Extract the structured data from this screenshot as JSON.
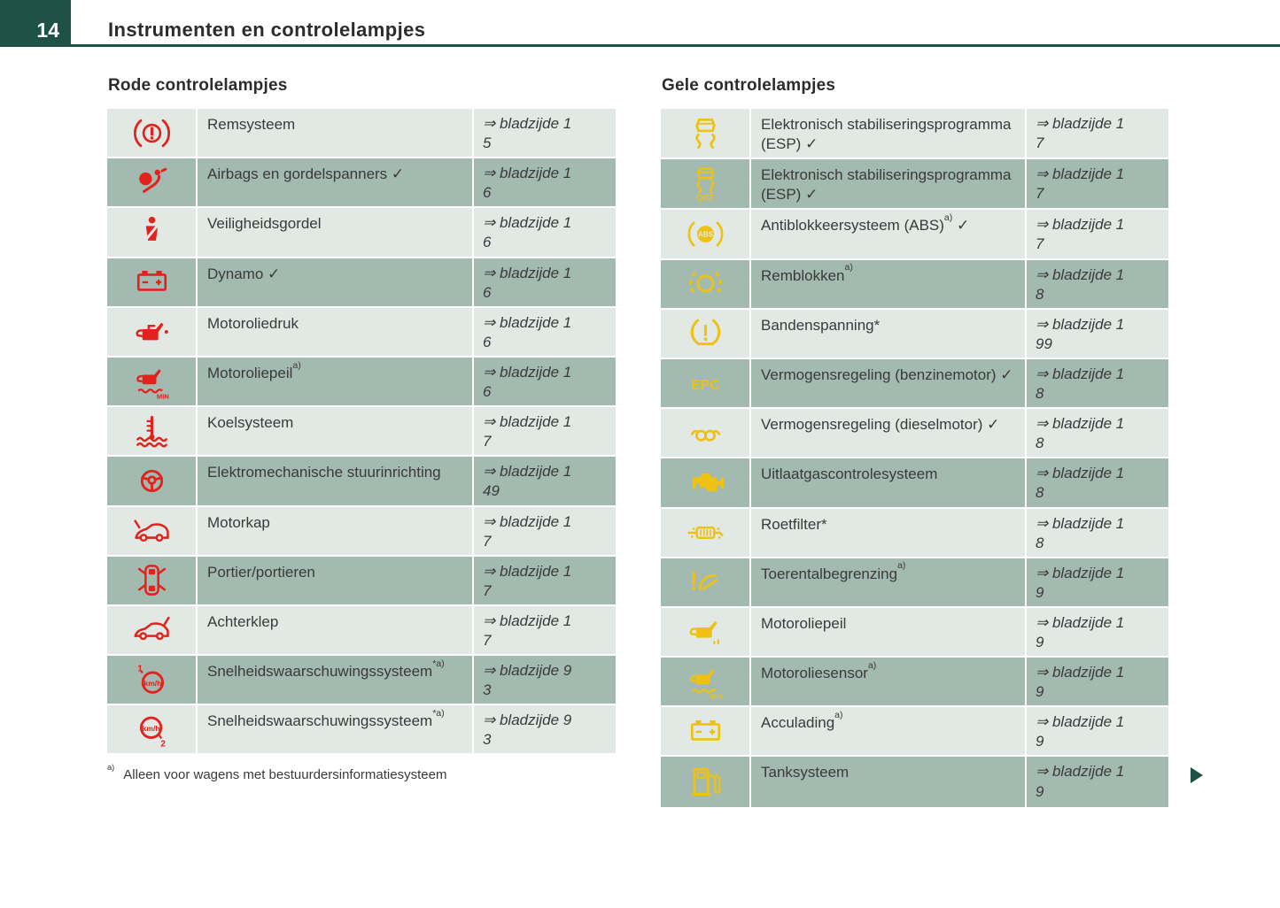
{
  "colors": {
    "teal": "#1e5247",
    "red": "#e2231d",
    "yellow": "#eec113",
    "row_light": "#e2e9e4",
    "row_dark": "#a3bab0",
    "text": "#3a3a3a"
  },
  "glyphs": {
    "check": "✓",
    "ref_arrow": "⇒"
  },
  "header": {
    "page_number": "14",
    "title": "Instrumenten en controlelampjes"
  },
  "red_section": {
    "heading": "Rode controlelampjes",
    "rows": [
      {
        "icon": "brake-warning-icon",
        "label": "Remsysteem",
        "sup": "",
        "check": false,
        "ref1": "⇒ bladzijde 1",
        "ref2": "5",
        "page": "15"
      },
      {
        "icon": "airbag-icon",
        "label": "Airbags en gordelspanners",
        "sup": "",
        "check": true,
        "ref1": "⇒ bladzijde 1",
        "ref2": "6",
        "page": "16"
      },
      {
        "icon": "seatbelt-icon",
        "label": "Veiligheidsgordel",
        "sup": "",
        "check": false,
        "ref1": "⇒ bladzijde 1",
        "ref2": "6",
        "page": "16"
      },
      {
        "icon": "battery-icon",
        "label": "Dynamo",
        "sup": "",
        "check": true,
        "ref1": "⇒ bladzijde 1",
        "ref2": "6",
        "page": "16"
      },
      {
        "icon": "oil-pressure-icon",
        "label": "Motoroliedruk",
        "sup": "",
        "check": false,
        "ref1": "⇒ bladzijde 1",
        "ref2": "6",
        "page": "16"
      },
      {
        "icon": "oil-level-min-icon",
        "label": "Motoroliepeil",
        "sup": "a)",
        "check": false,
        "ref1": "⇒ bladzijde 1",
        "ref2": "6",
        "page": "16"
      },
      {
        "icon": "coolant-temperature-icon",
        "label": "Koelsysteem",
        "sup": "",
        "check": false,
        "ref1": "⇒ bladzijde 1",
        "ref2": "7",
        "page": "17"
      },
      {
        "icon": "steering-wheel-icon",
        "label": "Elektromechanische stuurinrichting",
        "sup": "",
        "check": false,
        "ref1": "⇒ bladzijde 1",
        "ref2": "49",
        "page": "149"
      },
      {
        "icon": "hood-open-icon",
        "label": "Motorkap",
        "sup": "",
        "check": false,
        "ref1": "⇒ bladzijde 1",
        "ref2": "7",
        "page": "17"
      },
      {
        "icon": "doors-open-icon",
        "label": "Portier/portieren",
        "sup": "",
        "check": false,
        "ref1": "⇒ bladzijde 1",
        "ref2": "7",
        "page": "17"
      },
      {
        "icon": "tailgate-open-icon",
        "label": "Achterklep",
        "sup": "",
        "check": false,
        "ref1": "⇒ bladzijde 1",
        "ref2": "7",
        "page": "17"
      },
      {
        "icon": "speed-warning-1-icon",
        "label": "Snelheidswaarschuwingssysteem",
        "sup": "*a)",
        "check": false,
        "ref1": "⇒ bladzijde 9",
        "ref2": "3",
        "page": "93"
      },
      {
        "icon": "speed-warning-2-icon",
        "label": "Snelheidswaarschuwingssysteem",
        "sup": "*a)",
        "check": false,
        "ref1": "⇒ bladzijde 9",
        "ref2": "3",
        "page": "93"
      }
    ],
    "footnote_marker": "a)",
    "footnote_text": "Alleen voor wagens met bestuurdersinformatiesysteem"
  },
  "yellow_section": {
    "heading": "Gele controlelampjes",
    "rows": [
      {
        "icon": "esp-icon",
        "label": "Elektronisch stabiliseringsprogramma (ESP)",
        "sup": "",
        "check": true,
        "ref1": "⇒ bladzijde 1",
        "ref2": "7",
        "page": "17"
      },
      {
        "icon": "esp-off-icon",
        "label": "Elektronisch stabiliseringsprogramma (ESP)",
        "sup": "",
        "check": true,
        "ref1": "⇒ bladzijde 1",
        "ref2": "7",
        "page": "17"
      },
      {
        "icon": "abs-icon",
        "label": "Antiblokkeersysteem (ABS)",
        "sup": "a)",
        "check": true,
        "ref1": "⇒ bladzijde 1",
        "ref2": "7",
        "page": "17"
      },
      {
        "icon": "brake-pads-icon",
        "label": "Remblokken",
        "sup": "a)",
        "check": false,
        "ref1": "⇒ bladzijde 1",
        "ref2": "8",
        "page": "18"
      },
      {
        "icon": "tire-pressure-icon",
        "label": "Bandenspanning*",
        "sup": "",
        "check": false,
        "ref1": "⇒ bladzijde 1",
        "ref2": "99",
        "page": "199"
      },
      {
        "icon": "epc-icon",
        "label": "Vermogensregeling (benzinemotor)",
        "sup": "",
        "check": true,
        "ref1": "⇒ bladzijde 1",
        "ref2": "8",
        "page": "18"
      },
      {
        "icon": "glow-plug-icon",
        "label": "Vermogensregeling (dieselmotor)",
        "sup": "",
        "check": true,
        "ref1": "⇒ bladzijde 1",
        "ref2": "8",
        "page": "18"
      },
      {
        "icon": "check-engine-icon",
        "label": "Uitlaatgascontrolesysteem",
        "sup": "",
        "check": false,
        "ref1": "⇒ bladzijde 1",
        "ref2": "8",
        "page": "18"
      },
      {
        "icon": "particulate-filter-icon",
        "label": "Roetfilter*",
        "sup": "",
        "check": false,
        "ref1": "⇒ bladzijde 1",
        "ref2": "8",
        "page": "18"
      },
      {
        "icon": "rev-limit-icon",
        "label": "Toerentalbegrenzing",
        "sup": "a)",
        "check": false,
        "ref1": "⇒ bladzijde 1",
        "ref2": "9",
        "page": "19"
      },
      {
        "icon": "oil-level-icon",
        "label": "Motoroliepeil",
        "sup": "",
        "check": false,
        "ref1": "⇒ bladzijde 1",
        "ref2": "9",
        "page": "19"
      },
      {
        "icon": "oil-sensor-icon",
        "label": "Motoroliesensor",
        "sup": "a)",
        "check": false,
        "ref1": "⇒ bladzijde 1",
        "ref2": "9",
        "page": "19"
      },
      {
        "icon": "battery-charge-icon",
        "label": "Acculading",
        "sup": "a)",
        "check": false,
        "ref1": "⇒ bladzijde 1",
        "ref2": "9",
        "page": "19"
      },
      {
        "icon": "fuel-pump-icon",
        "label": "Tanksysteem",
        "sup": "",
        "check": false,
        "ref1": "⇒ bladzijde 1",
        "ref2": "9",
        "page": "19"
      }
    ]
  }
}
